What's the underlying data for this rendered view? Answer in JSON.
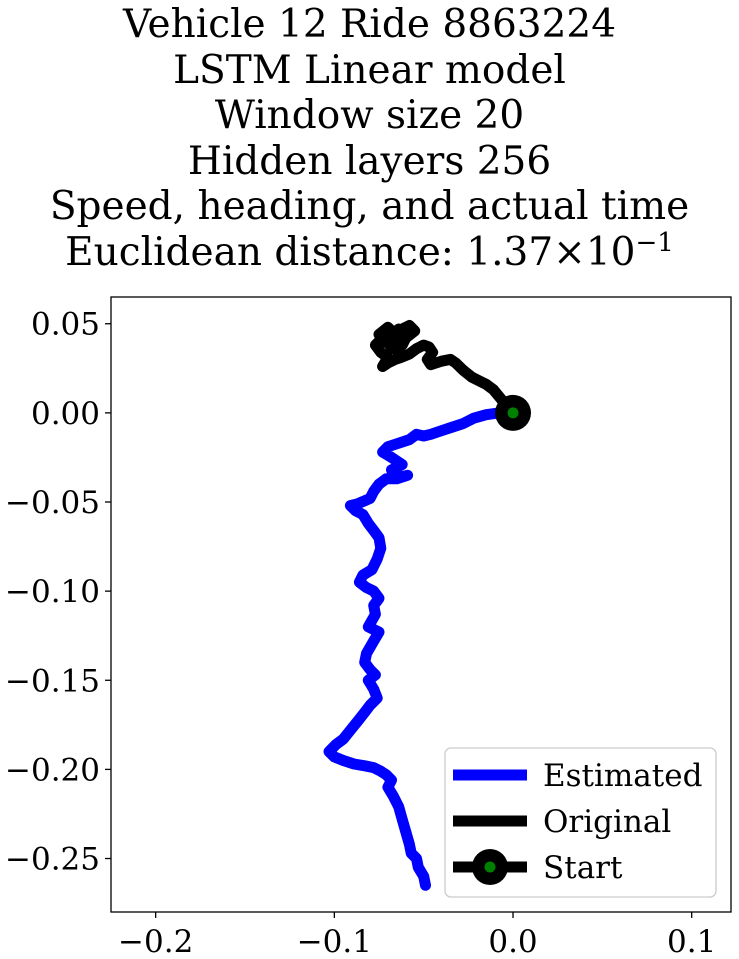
{
  "chart_data": {
    "type": "line",
    "title_lines": [
      "Vehicle 12 Ride 8863224",
      "LSTM Linear model",
      "Window size 20",
      "Hidden layers 256",
      "Speed, heading, and actual time"
    ],
    "title_distance_prefix": "Euclidean distance: 1.37",
    "title_distance_times": "×",
    "title_distance_base": "10",
    "title_distance_exp": "−1",
    "xlabel": "",
    "ylabel": "",
    "xlim": [
      -0.225,
      0.122
    ],
    "ylim": [
      -0.28,
      0.065
    ],
    "xticks": [
      {
        "value": -0.2,
        "label": "−0.2"
      },
      {
        "value": -0.1,
        "label": "−0.1"
      },
      {
        "value": 0.0,
        "label": "0.0"
      },
      {
        "value": 0.1,
        "label": "0.1"
      }
    ],
    "yticks": [
      {
        "value": 0.05,
        "label": "0.05"
      },
      {
        "value": 0.0,
        "label": "0.00"
      },
      {
        "value": -0.05,
        "label": "−0.05"
      },
      {
        "value": -0.1,
        "label": "−0.10"
      },
      {
        "value": -0.15,
        "label": "−0.15"
      },
      {
        "value": -0.2,
        "label": "−0.20"
      },
      {
        "value": -0.25,
        "label": "−0.25"
      }
    ],
    "grid": false,
    "legend_position": "lower-right",
    "series": [
      {
        "name": "Estimated",
        "color": "#0000ff",
        "points": [
          [
            0.0,
            0.0
          ],
          [
            -0.008,
            0.0
          ],
          [
            -0.015,
            -0.001
          ],
          [
            -0.022,
            -0.003
          ],
          [
            -0.028,
            -0.006
          ],
          [
            -0.034,
            -0.008
          ],
          [
            -0.04,
            -0.01
          ],
          [
            -0.046,
            -0.012
          ],
          [
            -0.05,
            -0.013
          ],
          [
            -0.054,
            -0.012
          ],
          [
            -0.058,
            -0.015
          ],
          [
            -0.064,
            -0.017
          ],
          [
            -0.07,
            -0.019
          ],
          [
            -0.073,
            -0.022
          ],
          [
            -0.068,
            -0.025
          ],
          [
            -0.062,
            -0.029
          ],
          [
            -0.068,
            -0.032
          ],
          [
            -0.063,
            -0.036
          ],
          [
            -0.059,
            -0.035
          ],
          [
            -0.065,
            -0.037
          ],
          [
            -0.071,
            -0.037
          ],
          [
            -0.075,
            -0.04
          ],
          [
            -0.078,
            -0.044
          ],
          [
            -0.08,
            -0.048
          ],
          [
            -0.087,
            -0.051
          ],
          [
            -0.091,
            -0.052
          ],
          [
            -0.088,
            -0.055
          ],
          [
            -0.084,
            -0.057
          ],
          [
            -0.081,
            -0.062
          ],
          [
            -0.078,
            -0.066
          ],
          [
            -0.075,
            -0.07
          ],
          [
            -0.074,
            -0.076
          ],
          [
            -0.076,
            -0.082
          ],
          [
            -0.079,
            -0.088
          ],
          [
            -0.084,
            -0.091
          ],
          [
            -0.086,
            -0.095
          ],
          [
            -0.082,
            -0.098
          ],
          [
            -0.078,
            -0.1
          ],
          [
            -0.075,
            -0.104
          ],
          [
            -0.078,
            -0.108
          ],
          [
            -0.077,
            -0.113
          ],
          [
            -0.081,
            -0.12
          ],
          [
            -0.075,
            -0.123
          ],
          [
            -0.078,
            -0.128
          ],
          [
            -0.082,
            -0.135
          ],
          [
            -0.083,
            -0.14
          ],
          [
            -0.08,
            -0.144
          ],
          [
            -0.077,
            -0.147
          ],
          [
            -0.081,
            -0.15
          ],
          [
            -0.078,
            -0.155
          ],
          [
            -0.076,
            -0.16
          ],
          [
            -0.08,
            -0.164
          ],
          [
            -0.083,
            -0.168
          ],
          [
            -0.087,
            -0.173
          ],
          [
            -0.091,
            -0.178
          ],
          [
            -0.095,
            -0.183
          ],
          [
            -0.099,
            -0.186
          ],
          [
            -0.103,
            -0.19
          ],
          [
            -0.1,
            -0.193
          ],
          [
            -0.095,
            -0.195
          ],
          [
            -0.089,
            -0.197
          ],
          [
            -0.083,
            -0.198
          ],
          [
            -0.078,
            -0.199
          ],
          [
            -0.074,
            -0.201
          ],
          [
            -0.071,
            -0.203
          ],
          [
            -0.068,
            -0.206
          ],
          [
            -0.07,
            -0.21
          ],
          [
            -0.067,
            -0.215
          ],
          [
            -0.064,
            -0.221
          ],
          [
            -0.062,
            -0.228
          ],
          [
            -0.06,
            -0.235
          ],
          [
            -0.058,
            -0.242
          ],
          [
            -0.057,
            -0.247
          ],
          [
            -0.054,
            -0.25
          ],
          [
            -0.053,
            -0.255
          ],
          [
            -0.05,
            -0.26
          ],
          [
            -0.049,
            -0.265
          ]
        ]
      },
      {
        "name": "Original",
        "color": "#000000",
        "points": [
          [
            0.0,
            0.0
          ],
          [
            -0.006,
            0.007
          ],
          [
            -0.011,
            0.013
          ],
          [
            -0.015,
            0.016
          ],
          [
            -0.019,
            0.018
          ],
          [
            -0.023,
            0.02
          ],
          [
            -0.028,
            0.024
          ],
          [
            -0.032,
            0.028
          ],
          [
            -0.035,
            0.03
          ],
          [
            -0.04,
            0.029
          ],
          [
            -0.046,
            0.027
          ],
          [
            -0.048,
            0.03
          ],
          [
            -0.045,
            0.034
          ],
          [
            -0.047,
            0.037
          ],
          [
            -0.05,
            0.038
          ],
          [
            -0.054,
            0.036
          ],
          [
            -0.058,
            0.033
          ],
          [
            -0.063,
            0.031
          ],
          [
            -0.066,
            0.03
          ],
          [
            -0.07,
            0.028
          ],
          [
            -0.073,
            0.026
          ],
          [
            -0.07,
            0.031
          ],
          [
            -0.074,
            0.034
          ],
          [
            -0.077,
            0.038
          ],
          [
            -0.073,
            0.042
          ],
          [
            -0.068,
            0.045
          ],
          [
            -0.062,
            0.047
          ],
          [
            -0.058,
            0.049
          ],
          [
            -0.055,
            0.046
          ],
          [
            -0.06,
            0.042
          ],
          [
            -0.065,
            0.04
          ],
          [
            -0.069,
            0.043
          ],
          [
            -0.064,
            0.047
          ],
          [
            -0.059,
            0.044
          ],
          [
            -0.062,
            0.038
          ],
          [
            -0.067,
            0.036
          ],
          [
            -0.071,
            0.04
          ],
          [
            -0.075,
            0.044
          ],
          [
            -0.07,
            0.048
          ],
          [
            -0.065,
            0.043
          ]
        ]
      }
    ],
    "start": {
      "name": "Start",
      "x": 0.0,
      "y": 0.0,
      "edge_color": "#000000",
      "face_color": "#008000"
    }
  }
}
